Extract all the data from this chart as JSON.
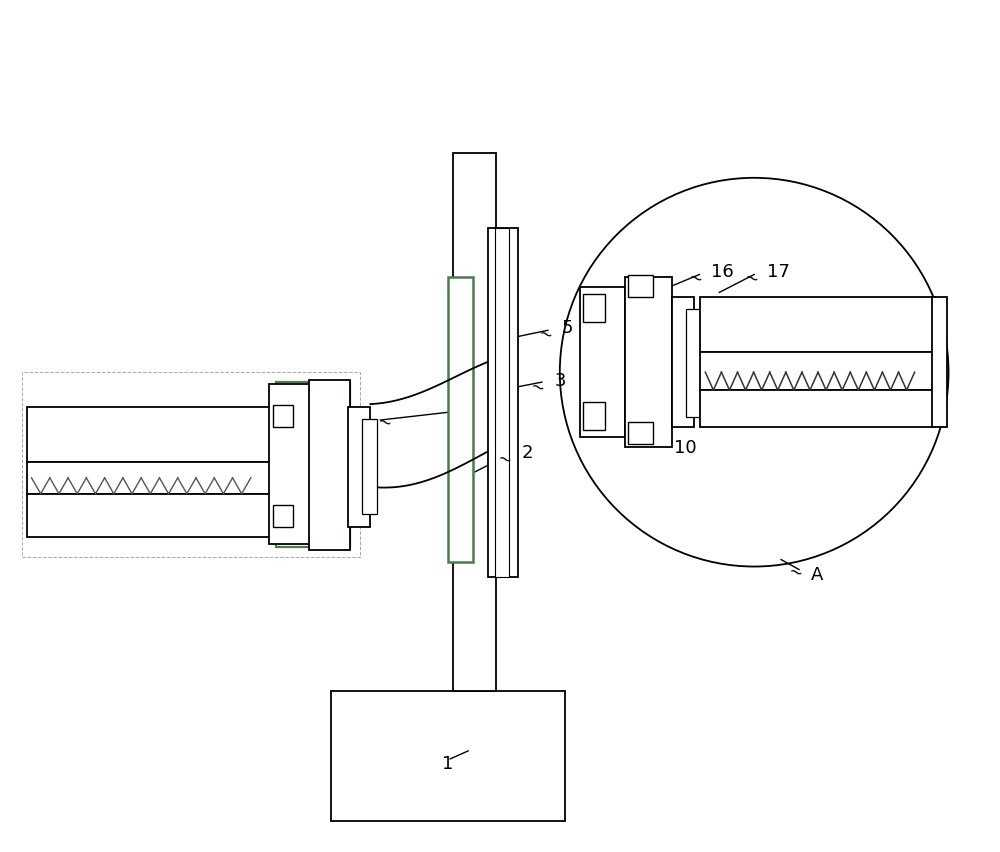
{
  "bg_color": "#ffffff",
  "line_color": "#000000",
  "green_color": "#4a7c4a",
  "fig_width": 10.0,
  "fig_height": 8.53
}
